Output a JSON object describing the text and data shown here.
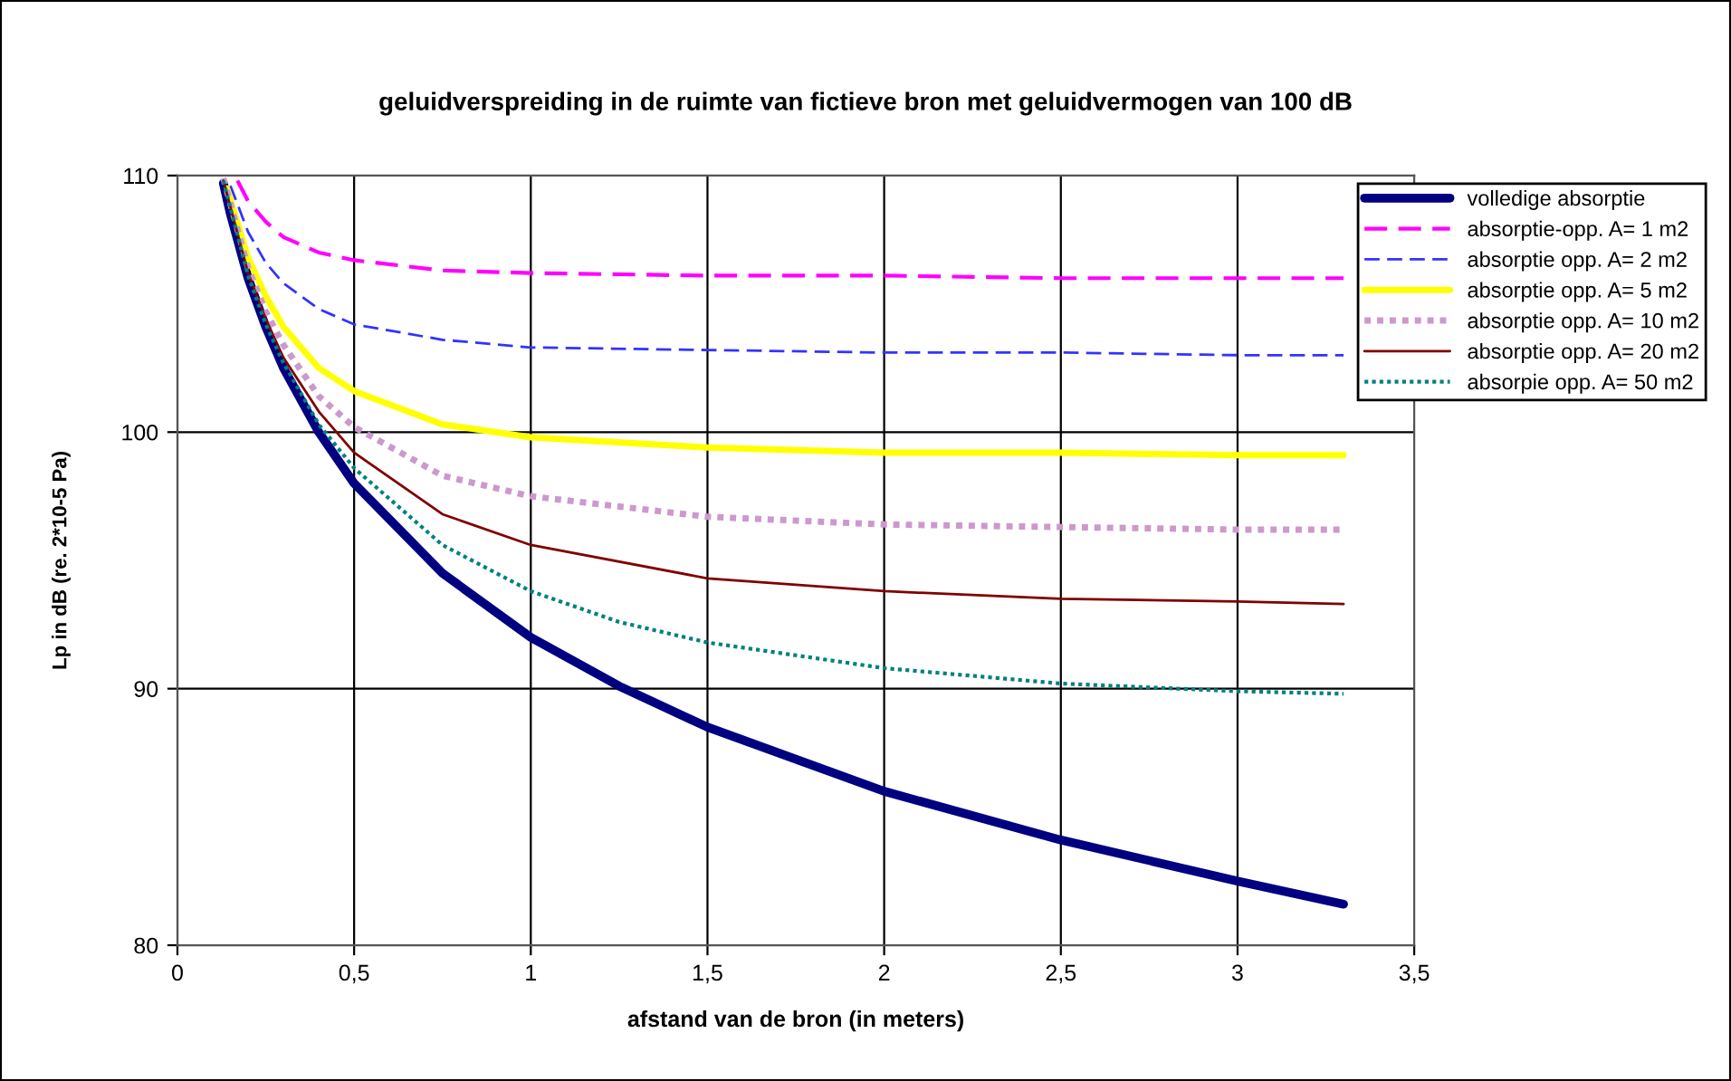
{
  "chart_data": {
    "type": "line",
    "title": "geluidverspreiding in de ruimte van fictieve bron met geluidvermogen van 100 dB",
    "xlabel": "afstand van de bron (in meters)",
    "ylabel": "Lp in dB (re. 2*10-5 Pa)",
    "xlim": [
      0,
      3.5
    ],
    "ylim": [
      80,
      110
    ],
    "xticks": [
      0,
      {
        "value": 0.5,
        "label": "0,5"
      },
      1,
      {
        "value": 1.5,
        "label": "1,5"
      },
      2,
      {
        "value": 2.5,
        "label": "2,5"
      },
      3,
      {
        "value": 3.5,
        "label": "3,5"
      }
    ],
    "yticks": [
      80,
      90,
      100,
      110
    ],
    "grid": true,
    "legend": "right",
    "marker": "none",
    "series": [
      {
        "name": "volledige absorptie",
        "color": "#000080",
        "line_style": "solid",
        "x": [
          0.13,
          0.15,
          0.2,
          0.25,
          0.3,
          0.4,
          0.5,
          0.75,
          1,
          1.25,
          1.5,
          2,
          2.5,
          3,
          3.3
        ],
        "values": [
          109.7,
          108.5,
          106.0,
          104.1,
          102.5,
          100.0,
          98.0,
          94.5,
          92.0,
          90.1,
          88.5,
          86.0,
          84.1,
          82.5,
          81.6
        ]
      },
      {
        "name": "absorptie-opp. A= 1 m2",
        "color": "#ff00ff",
        "line_style": "dashed",
        "x": [
          0.17,
          0.2,
          0.25,
          0.3,
          0.4,
          0.5,
          0.75,
          1,
          1.5,
          2,
          2.5,
          3,
          3.3
        ],
        "values": [
          109.8,
          109.0,
          108.2,
          107.6,
          107.0,
          106.7,
          106.3,
          106.2,
          106.1,
          106.1,
          106.0,
          106.0,
          106.0
        ]
      },
      {
        "name": "absorptie opp. A= 2 m2",
        "color": "#3333ff",
        "line_style": "dashed",
        "x": [
          0.15,
          0.2,
          0.25,
          0.3,
          0.4,
          0.5,
          0.75,
          1,
          1.5,
          2,
          2.5,
          3,
          3.3
        ],
        "values": [
          109.6,
          107.8,
          106.6,
          105.8,
          104.8,
          104.2,
          103.6,
          103.3,
          103.2,
          103.1,
          103.1,
          103.0,
          103.0
        ]
      },
      {
        "name": "absorptie opp. A= 5 m2",
        "color": "#ffff00",
        "line_style": "solid",
        "x": [
          0.14,
          0.2,
          0.25,
          0.3,
          0.4,
          0.5,
          0.75,
          1,
          1.5,
          2,
          2.5,
          3,
          3.3
        ],
        "values": [
          109.5,
          106.8,
          105.3,
          104.1,
          102.5,
          101.6,
          100.3,
          99.8,
          99.4,
          99.2,
          99.2,
          99.1,
          99.1
        ]
      },
      {
        "name": "absorptie opp. A= 10 m2",
        "color": "#cc99cc",
        "line_style": "dotted",
        "x": [
          0.13,
          0.2,
          0.25,
          0.3,
          0.4,
          0.5,
          0.75,
          1,
          1.5,
          2,
          2.5,
          3,
          3.3
        ],
        "values": [
          109.9,
          106.4,
          104.7,
          103.4,
          101.4,
          100.2,
          98.3,
          97.5,
          96.7,
          96.4,
          96.3,
          96.2,
          96.2
        ]
      },
      {
        "name": "absorptie opp. A= 20 m2",
        "color": "#800000",
        "line_style": "solid",
        "x": [
          0.13,
          0.2,
          0.25,
          0.3,
          0.4,
          0.5,
          0.75,
          1,
          1.5,
          2,
          2.5,
          3,
          3.3
        ],
        "values": [
          109.8,
          106.2,
          104.4,
          102.9,
          100.8,
          99.2,
          96.8,
          95.6,
          94.3,
          93.8,
          93.5,
          93.4,
          93.3
        ]
      },
      {
        "name": "absorpie opp. A= 50 m2",
        "color": "#008080",
        "line_style": "dotted",
        "x": [
          0.13,
          0.2,
          0.25,
          0.3,
          0.4,
          0.5,
          0.75,
          1,
          1.25,
          1.5,
          2,
          2.5,
          3,
          3.3
        ],
        "values": [
          109.8,
          106.1,
          104.2,
          102.7,
          100.3,
          98.6,
          95.6,
          93.8,
          92.6,
          91.8,
          90.8,
          90.2,
          89.9,
          89.8
        ]
      }
    ]
  }
}
